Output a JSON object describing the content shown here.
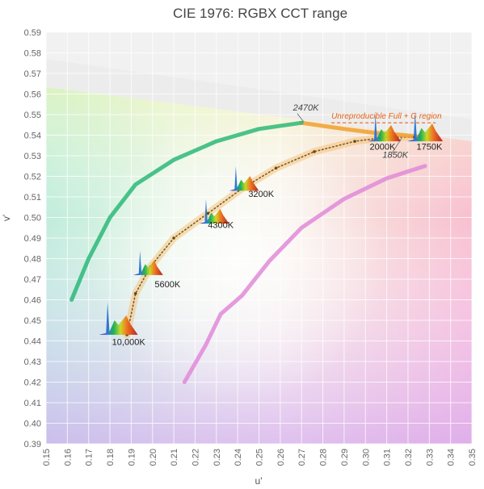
{
  "chart_data": {
    "type": "line",
    "title": "CIE 1976: RGBX CCT range",
    "xlabel": "u'",
    "ylabel": "v'",
    "xlim": [
      0.15,
      0.35
    ],
    "ylim": [
      0.39,
      0.59
    ],
    "grid": true,
    "x_ticks": [
      "0.15",
      "0.16",
      "0.17",
      "0.18",
      "0.19",
      "0.20",
      "0.21",
      "0.22",
      "0.23",
      "0.24",
      "0.25",
      "0.26",
      "0.27",
      "0.28",
      "0.29",
      "0.30",
      "0.31",
      "0.32",
      "0.33",
      "0.34",
      "0.35"
    ],
    "y_ticks": [
      "0.39",
      "0.40",
      "0.41",
      "0.42",
      "0.43",
      "0.44",
      "0.45",
      "0.46",
      "0.47",
      "0.48",
      "0.49",
      "0.50",
      "0.51",
      "0.52",
      "0.53",
      "0.54",
      "0.55",
      "0.56",
      "0.57",
      "0.58",
      "0.59"
    ],
    "series": [
      {
        "color": "#c07a2a",
        "style": "dotted",
        "x": [
          0.188,
          0.192,
          0.199,
          0.21,
          0.226,
          0.242,
          0.258,
          0.276,
          0.295,
          0.31,
          0.323
        ],
        "y": [
          0.443,
          0.463,
          0.476,
          0.49,
          0.502,
          0.514,
          0.524,
          0.532,
          0.537,
          0.539,
          0.539
        ]
      },
      {
        "color": "#f0a030",
        "style": "solid",
        "x": [
          0.27,
          0.29,
          0.305,
          0.318,
          0.326
        ],
        "y": [
          0.546,
          0.543,
          0.541,
          0.54,
          0.539
        ]
      },
      {
        "color": "#2bb879",
        "style": "solid",
        "x": [
          0.162,
          0.17,
          0.18,
          0.192,
          0.21,
          0.23,
          0.25,
          0.27
        ],
        "y": [
          0.46,
          0.48,
          0.5,
          0.516,
          0.528,
          0.537,
          0.543,
          0.546
        ]
      },
      {
        "color": "#e08ad8",
        "style": "solid",
        "x": [
          0.215,
          0.225,
          0.232,
          0.242,
          0.255,
          0.27,
          0.29,
          0.31,
          0.328
        ],
        "y": [
          0.42,
          0.438,
          0.453,
          0.462,
          0.479,
          0.495,
          0.509,
          0.519,
          0.525
        ]
      }
    ],
    "annotations": [
      {
        "text": "2470K",
        "x": 0.266,
        "y": 0.552,
        "italic": true
      },
      {
        "text": "Unreproducible Full + G region",
        "x": 0.284,
        "y": 0.548,
        "italic": true
      },
      {
        "text": "2000K",
        "x": 0.302,
        "y": 0.533
      },
      {
        "text": "1750K",
        "x": 0.324,
        "y": 0.533
      },
      {
        "text": "1850K",
        "x": 0.308,
        "y": 0.529,
        "italic": true
      },
      {
        "text": "3200K",
        "x": 0.245,
        "y": 0.51
      },
      {
        "text": "4300K",
        "x": 0.226,
        "y": 0.495
      },
      {
        "text": "5600K",
        "x": 0.201,
        "y": 0.466
      },
      {
        "text": "10,000K",
        "x": 0.181,
        "y": 0.438
      }
    ]
  }
}
